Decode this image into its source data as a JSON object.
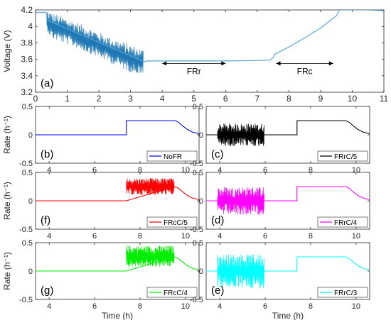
{
  "chart_data": [
    {
      "id": "a",
      "type": "line",
      "panel_label": "(a)",
      "ylabel": "Voltage (V)",
      "xlabel": "",
      "xlim": [
        0,
        11
      ],
      "ylim": [
        3.2,
        4.2
      ],
      "xticks": [
        "0",
        "1",
        "2",
        "3",
        "4",
        "5",
        "6",
        "7",
        "8",
        "9",
        "10",
        "11"
      ],
      "yticks": [
        "3.2",
        "3.4",
        "3.6",
        "3.8",
        "4",
        "4.2"
      ],
      "grid": false,
      "color": "#1f77b4",
      "envelope": {
        "x": [
          0.35,
          0.5,
          1.0,
          1.5,
          2.0,
          2.5,
          3.0,
          3.4
        ],
        "upper": [
          4.2,
          4.17,
          4.1,
          4.02,
          3.93,
          3.85,
          3.78,
          3.72
        ],
        "lower": [
          3.95,
          3.85,
          3.78,
          3.7,
          3.62,
          3.53,
          3.44,
          3.42
        ]
      },
      "x": [
        0,
        0.35,
        0.4,
        3.45,
        3.5,
        4.0,
        5.0,
        6.0,
        7.0,
        7.4,
        7.5,
        7.55,
        8.0,
        8.5,
        9.0,
        9.5,
        9.6,
        10.0,
        10.5,
        11.0
      ],
      "y": [
        4.17,
        4.17,
        4.07,
        3.57,
        3.58,
        3.58,
        3.58,
        3.58,
        3.585,
        3.59,
        3.62,
        3.66,
        3.75,
        3.86,
        3.98,
        4.13,
        4.2,
        4.2,
        4.2,
        4.19
      ],
      "annotations": [
        {
          "text": "FRr",
          "x_range": [
            4.0,
            6.0
          ],
          "y": 3.55
        },
        {
          "text": "FRc",
          "x_range": [
            7.6,
            9.4
          ],
          "y": 3.55
        }
      ]
    },
    {
      "id": "b",
      "type": "line",
      "panel_label": "(b)",
      "legend": "NoFR",
      "color": "#0000ff",
      "ylabel": "Rate (h⁻¹)",
      "xlabel": "",
      "xlim": [
        3.4,
        10.6
      ],
      "ylim": [
        -0.5,
        0.5
      ],
      "xticks": [
        "4",
        "6",
        "8",
        "10"
      ],
      "yticks": [
        "-0.5",
        "0",
        "0.5"
      ],
      "noise": [],
      "x": [
        3.4,
        7.4,
        7.4,
        9.55,
        9.7,
        9.9,
        10.1,
        10.3,
        10.5,
        10.6
      ],
      "y": [
        0,
        0,
        0.25,
        0.25,
        0.22,
        0.15,
        0.09,
        0.05,
        0.03,
        0.02
      ]
    },
    {
      "id": "c",
      "type": "line",
      "panel_label": "(c)",
      "legend": "FRrC/5",
      "color": "#000000",
      "ylabel": "",
      "xlabel": "",
      "xlim": [
        3.4,
        10.6
      ],
      "ylim": [
        -0.5,
        0.5
      ],
      "xticks": [
        "4",
        "6",
        "8",
        "10"
      ],
      "yticks": [
        "-0.5",
        "0",
        "0.5"
      ],
      "noise": [
        {
          "x_range": [
            3.9,
            5.95
          ],
          "min": -0.2,
          "max": 0.2
        }
      ],
      "x": [
        3.4,
        7.4,
        7.4,
        9.55,
        9.7,
        9.9,
        10.1,
        10.3,
        10.5,
        10.6
      ],
      "y": [
        0,
        0,
        0.25,
        0.25,
        0.22,
        0.15,
        0.09,
        0.05,
        0.03,
        0.02
      ]
    },
    {
      "id": "f",
      "type": "line",
      "panel_label": "(f)",
      "legend": "FRcC/5",
      "color": "#ff0000",
      "ylabel": "Rate (h⁻¹)",
      "xlabel": "",
      "xlim": [
        3.4,
        10.6
      ],
      "ylim": [
        -0.5,
        0.5
      ],
      "xticks": [
        "4",
        "6",
        "8",
        "10"
      ],
      "yticks": [
        "-0.5",
        "0",
        "0.5"
      ],
      "noise": [
        {
          "x_range": [
            7.4,
            9.5
          ],
          "min": 0.1,
          "max": 0.4
        }
      ],
      "x": [
        3.4,
        7.4,
        9.5,
        9.7,
        9.9,
        10.1,
        10.3,
        10.5,
        10.6
      ],
      "y": [
        0,
        0,
        0.25,
        0.22,
        0.15,
        0.09,
        0.05,
        0.03,
        0.02
      ]
    },
    {
      "id": "d",
      "type": "line",
      "panel_label": "(d)",
      "legend": "FRrC/4",
      "color": "#ff00ff",
      "ylabel": "",
      "xlabel": "",
      "xlim": [
        3.4,
        10.6
      ],
      "ylim": [
        -0.5,
        0.5
      ],
      "xticks": [
        "4",
        "6",
        "8",
        "10"
      ],
      "yticks": [
        "-0.5",
        "0",
        "0.5"
      ],
      "noise": [
        {
          "x_range": [
            3.9,
            5.95
          ],
          "min": -0.25,
          "max": 0.25
        }
      ],
      "x": [
        3.4,
        7.4,
        7.4,
        9.55,
        9.7,
        9.9,
        10.1,
        10.3,
        10.5,
        10.6
      ],
      "y": [
        0,
        0,
        0.25,
        0.25,
        0.22,
        0.15,
        0.09,
        0.05,
        0.03,
        0.02
      ]
    },
    {
      "id": "g",
      "type": "line",
      "panel_label": "(g)",
      "legend": "FRcC/4",
      "color": "#00ee00",
      "ylabel": "Rate (h⁻¹)",
      "xlabel": "Time (h)",
      "xlim": [
        3.4,
        10.6
      ],
      "ylim": [
        -0.5,
        0.5
      ],
      "xticks": [
        "4",
        "6",
        "8",
        "10"
      ],
      "yticks": [
        "-0.5",
        "0",
        "0.5"
      ],
      "noise": [
        {
          "x_range": [
            7.4,
            9.5
          ],
          "min": 0.07,
          "max": 0.45
        }
      ],
      "x": [
        3.4,
        7.4,
        9.5,
        9.7,
        9.9,
        10.1,
        10.3,
        10.5,
        10.6
      ],
      "y": [
        0,
        0,
        0.25,
        0.22,
        0.15,
        0.09,
        0.05,
        0.03,
        0.02
      ]
    },
    {
      "id": "e",
      "type": "line",
      "panel_label": "(e)",
      "legend": "FRrC/3",
      "color": "#00ffff",
      "ylabel": "",
      "xlabel": "Time (h)",
      "xlim": [
        3.4,
        10.6
      ],
      "ylim": [
        -0.5,
        0.5
      ],
      "xticks": [
        "4",
        "6",
        "8",
        "10"
      ],
      "yticks": [
        "-0.5",
        "0",
        "0.5"
      ],
      "noise": [
        {
          "x_range": [
            3.9,
            5.95
          ],
          "min": -0.3,
          "max": 0.3
        }
      ],
      "x": [
        3.4,
        7.4,
        7.4,
        9.55,
        9.7,
        9.9,
        10.1,
        10.3,
        10.5,
        10.6
      ],
      "y": [
        0,
        0,
        0.25,
        0.25,
        0.22,
        0.15,
        0.09,
        0.05,
        0.03,
        0.02
      ]
    }
  ]
}
